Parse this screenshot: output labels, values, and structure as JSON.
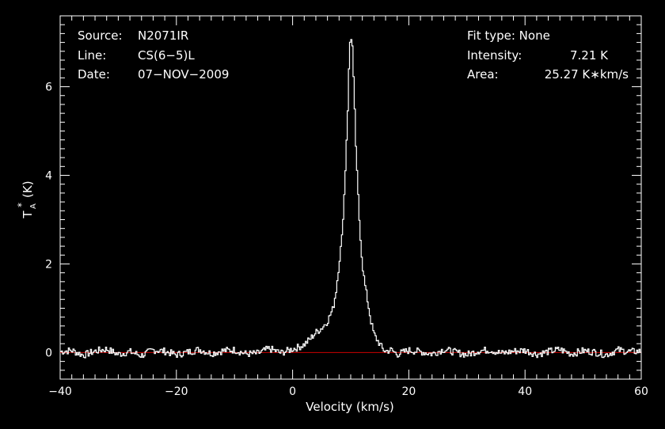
{
  "header": {
    "source_label": "Source:",
    "source_value": "N2071IR",
    "line_label": "Line:",
    "line_value": "CS(6−5)L",
    "date_label": "Date:",
    "date_value": "07−NOV−2009",
    "fit_type": "Fit type: None",
    "intensity_label": "Intensity:",
    "intensity_value": "7.21 K",
    "area_label": "Area:",
    "area_value": "25.27 K∗km/s"
  },
  "chart_data": {
    "type": "line",
    "xlabel": "Velocity (km/s)",
    "ylabel_main": "T",
    "ylabel_sub": "A",
    "ylabel_sup": "*",
    "ylabel_unit": "(K)",
    "xlim": [
      -40,
      60
    ],
    "ylim": [
      -0.6,
      7.6
    ],
    "xticks": [
      -40,
      -20,
      0,
      20,
      40,
      60
    ],
    "xtick_labels": [
      "−40",
      "−20",
      "0",
      "20",
      "40",
      "60"
    ],
    "yticks": [
      0,
      2,
      4,
      6
    ],
    "ytick_labels": [
      "0",
      "2",
      "4",
      "6"
    ],
    "baseline": 0,
    "colors": {
      "spectrum": "#ffffff",
      "baseline": "#cc0000",
      "background": "#000000"
    },
    "series": [
      {
        "x": [
          -40,
          -38,
          -36,
          -34,
          -32,
          -30,
          -28,
          -26,
          -24,
          -22,
          -20,
          -18,
          -16,
          -14,
          -12,
          -10,
          -8,
          -6,
          -4,
          -2,
          0,
          1,
          2,
          3,
          4,
          5,
          6,
          7,
          7.5,
          8,
          8.5,
          9,
          9.5,
          9.8,
          10,
          10.3,
          10.6,
          11,
          11.5,
          12,
          12.5,
          13,
          13.5,
          14,
          14.5,
          15,
          15.5,
          16,
          17,
          18,
          20,
          22,
          24,
          26,
          28,
          30,
          32,
          34,
          36,
          38,
          40,
          42,
          44,
          46,
          48,
          50,
          52,
          54,
          56,
          58,
          60
        ],
        "y": [
          0.02,
          0.05,
          -0.06,
          0.03,
          0.08,
          -0.04,
          0.02,
          -0.07,
          0.06,
          0.03,
          -0.05,
          0.01,
          0.07,
          -0.02,
          0.04,
          0.06,
          -0.03,
          -0.02,
          0.09,
          -0.01,
          0.08,
          0.12,
          0.18,
          0.3,
          0.45,
          0.55,
          0.7,
          1.0,
          1.4,
          2.0,
          2.6,
          3.8,
          5.5,
          6.8,
          7.21,
          6.9,
          5.8,
          4.3,
          3.0,
          2.0,
          1.5,
          1.1,
          0.7,
          0.42,
          0.3,
          0.2,
          0.08,
          0.03,
          0.06,
          -0.04,
          0.05,
          0.02,
          -0.03,
          0.07,
          0.01,
          -0.05,
          0.04,
          0.06,
          -0.02,
          0.03,
          0.05,
          -0.04,
          0.02,
          0.07,
          -0.03,
          0.04,
          0.01,
          -0.05,
          0.06,
          0.02,
          0.03
        ]
      }
    ]
  }
}
